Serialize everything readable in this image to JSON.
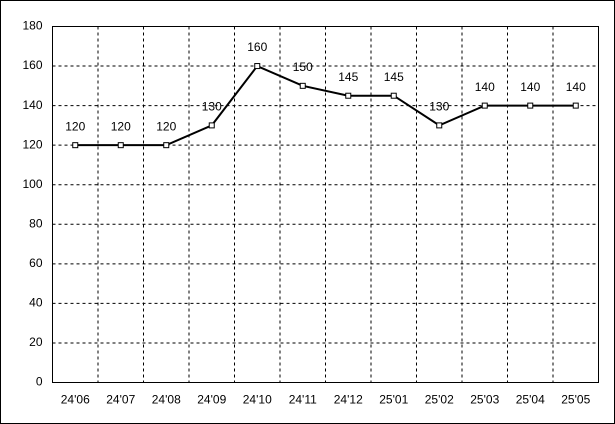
{
  "chart_data": {
    "type": "line",
    "categories": [
      "24'06",
      "24'07",
      "24'08",
      "24'09",
      "24'10",
      "24'11",
      "24'12",
      "25'01",
      "25'02",
      "25'03",
      "25'04",
      "25'05"
    ],
    "values": [
      120,
      120,
      120,
      130,
      160,
      150,
      145,
      145,
      130,
      140,
      140,
      140
    ],
    "color": "#000000",
    "ylim": [
      0,
      180
    ],
    "yticks": [
      0,
      20,
      40,
      60,
      80,
      100,
      120,
      140,
      160,
      180
    ],
    "grid": true
  }
}
